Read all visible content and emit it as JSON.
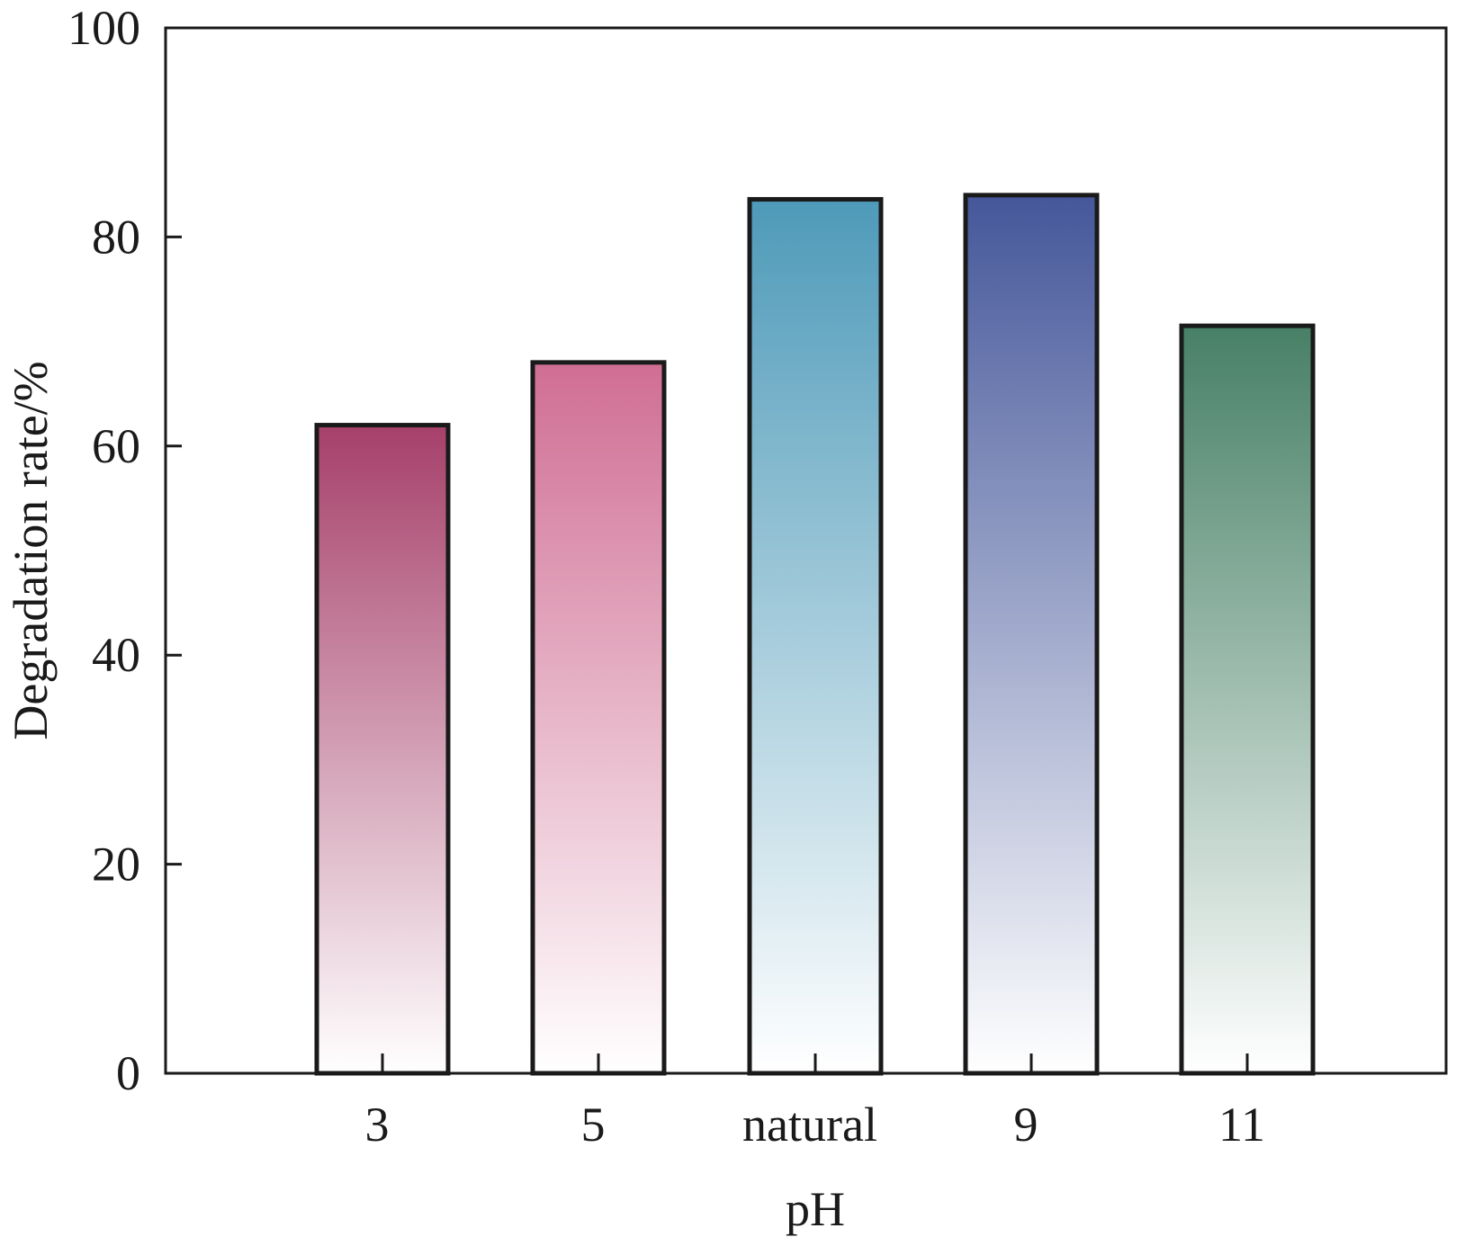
{
  "chart_data": {
    "type": "bar",
    "title": "",
    "xlabel": "pH",
    "ylabel": "Degradation rate/%",
    "categories": [
      "3",
      "5",
      "natural",
      "9",
      "11"
    ],
    "values": [
      62,
      68,
      83.6,
      84,
      71.5
    ],
    "ylim": [
      0,
      100
    ],
    "yticks": [
      0,
      20,
      40,
      60,
      80,
      100
    ],
    "ytick_labels": [
      "0",
      "20",
      "40",
      "60",
      "80",
      "100"
    ],
    "grid": false,
    "legend": "none",
    "bar_colors_top": [
      "#a6406a",
      "#d06e93",
      "#4e9ab9",
      "#45579a",
      "#478066"
    ],
    "bar_colors_bottom": [
      "#ffffff",
      "#ffffff",
      "#ffffff",
      "#ffffff",
      "#ffffff"
    ],
    "bar_edge_color": "#1a1a1a"
  }
}
